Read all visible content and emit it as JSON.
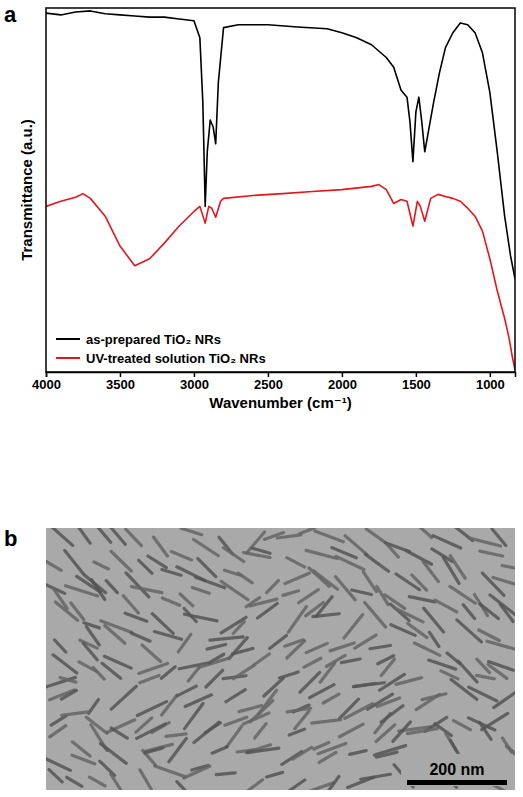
{
  "chart_data": {
    "type": "line",
    "panel": "a",
    "x_label": "Wavenumber (cm⁻¹)",
    "y_label": "Transmittance (a.u.)",
    "xlim": [
      4000,
      830
    ],
    "ylim": [
      0,
      100
    ],
    "xticks": [
      4000,
      3500,
      3000,
      2500,
      2000,
      1500,
      1000
    ],
    "tick_labels": "x",
    "legend": "lower left",
    "series": [
      {
        "name": "as-prepared TiO₂ NRs",
        "color": "#000000",
        "x": [
          4000,
          3900,
          3800,
          3700,
          3600,
          3500,
          3400,
          3300,
          3200,
          3100,
          3000,
          2960,
          2940,
          2924,
          2910,
          2890,
          2870,
          2853,
          2835,
          2800,
          2700,
          2500,
          2300,
          2100,
          2000,
          1900,
          1800,
          1700,
          1650,
          1600,
          1560,
          1540,
          1520,
          1500,
          1480,
          1460,
          1440,
          1410,
          1380,
          1340,
          1300,
          1250,
          1200,
          1150,
          1100,
          1050,
          1000,
          950,
          900,
          860,
          830
        ],
        "values": [
          98.6,
          98.1,
          98.9,
          99.2,
          98.4,
          98.1,
          97.8,
          97.5,
          97.5,
          97.0,
          96.5,
          91.8,
          74.1,
          45.5,
          60.5,
          69.2,
          67.3,
          62.7,
          79.6,
          94.6,
          95.4,
          95.4,
          94.8,
          94.3,
          93.2,
          91.8,
          89.9,
          86.4,
          83.7,
          77.4,
          75.5,
          68.7,
          57.8,
          71.4,
          75.5,
          68.7,
          60.5,
          67.3,
          74.1,
          82.3,
          89.1,
          93.2,
          95.9,
          95.4,
          93.2,
          87.7,
          76.8,
          60.5,
          42.8,
          31.9,
          25.6
        ]
      },
      {
        "name": "UV-treated solution TiO₂ NRs",
        "color": "#e8141c",
        "x": [
          4000,
          3900,
          3800,
          3750,
          3700,
          3600,
          3500,
          3400,
          3300,
          3200,
          3100,
          3000,
          2960,
          2924,
          2900,
          2880,
          2853,
          2820,
          2800,
          2600,
          2400,
          2200,
          2000,
          1800,
          1750,
          1700,
          1650,
          1600,
          1560,
          1520,
          1490,
          1470,
          1440,
          1400,
          1350,
          1300,
          1250,
          1200,
          1150,
          1100,
          1050,
          1000,
          950,
          900,
          870,
          850,
          830
        ],
        "values": [
          45.5,
          46.9,
          48.0,
          49.0,
          47.7,
          42.8,
          34.6,
          29.2,
          31.1,
          35.4,
          40.1,
          44.1,
          45.5,
          40.9,
          45.5,
          45.0,
          42.5,
          46.9,
          47.7,
          48.5,
          49.0,
          49.6,
          50.1,
          51.0,
          51.5,
          50.1,
          46.3,
          47.4,
          46.9,
          40.1,
          46.9,
          45.5,
          41.4,
          47.7,
          48.8,
          48.2,
          47.7,
          46.9,
          45.0,
          42.8,
          38.7,
          31.1,
          22.3,
          14.7,
          9.3,
          4.6,
          0.5
        ]
      }
    ]
  },
  "image": {
    "panel": "b",
    "scale_bar": "200 nm"
  }
}
